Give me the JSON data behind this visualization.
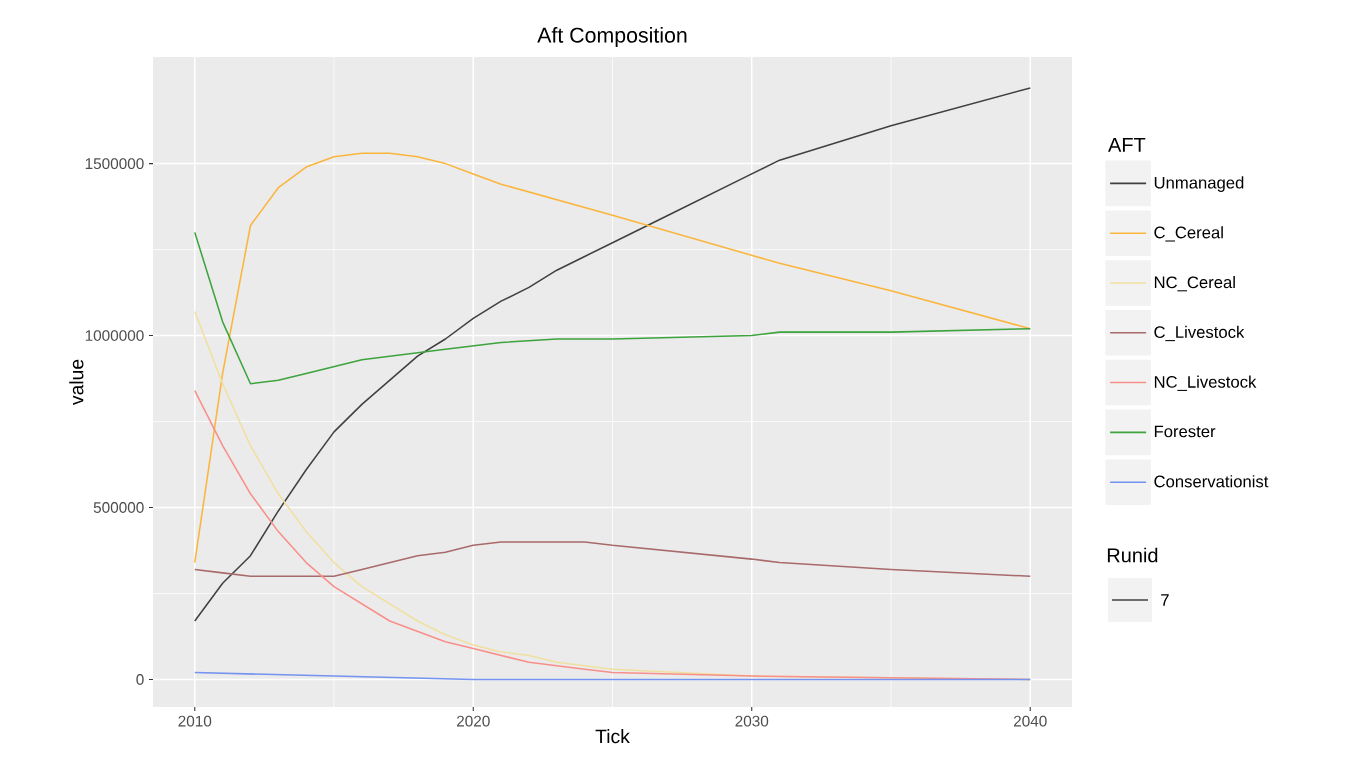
{
  "chart_data": {
    "type": "line",
    "title": "Aft Composition",
    "xlabel": "Tick",
    "ylabel": "value",
    "legend_title": "AFT",
    "annotations": [
      "Runid",
      "7"
    ],
    "xlim": [
      2008.5,
      2041.5
    ],
    "ylim": [
      -80000,
      1810000
    ],
    "xticks": [
      2010,
      2020,
      2030,
      2040
    ],
    "yticks": [
      0,
      500000,
      1000000,
      1500000
    ],
    "grid": true,
    "legend": "right",
    "line_style": "solid",
    "marker": "none",
    "series": [
      {
        "name": "Unmanaged",
        "color": "#404040",
        "x": [
          2010,
          2011,
          2012,
          2013,
          2014,
          2015,
          2016,
          2017,
          2018,
          2019,
          2020,
          2021,
          2022,
          2023,
          2024,
          2025,
          2027,
          2030,
          2031,
          2035,
          2040
        ],
        "values": [
          170000,
          280000,
          360000,
          490000,
          610000,
          720000,
          800000,
          870000,
          940000,
          990000,
          1050000,
          1100000,
          1140000,
          1190000,
          1230000,
          1270000,
          1350000,
          1470000,
          1510000,
          1610000,
          1720000
        ]
      },
      {
        "name": "C_Cereal",
        "color": "#fbb53c",
        "x": [
          2010,
          2011,
          2012,
          2013,
          2014,
          2015,
          2016,
          2017,
          2018,
          2019,
          2020,
          2021,
          2025,
          2031,
          2035,
          2040
        ],
        "values": [
          340000,
          890000,
          1320000,
          1430000,
          1490000,
          1520000,
          1530000,
          1530000,
          1520000,
          1500000,
          1470000,
          1440000,
          1350000,
          1210000,
          1130000,
          1020000
        ]
      },
      {
        "name": "NC_Cereal",
        "color": "#f0e0a0",
        "x": [
          2010,
          2011,
          2012,
          2013,
          2014,
          2015,
          2016,
          2017,
          2018,
          2019,
          2020,
          2021,
          2022,
          2023,
          2024,
          2025,
          2030,
          2040
        ],
        "values": [
          1070000,
          860000,
          680000,
          540000,
          430000,
          340000,
          270000,
          220000,
          170000,
          130000,
          100000,
          80000,
          70000,
          50000,
          40000,
          30000,
          10000,
          0
        ]
      },
      {
        "name": "C_Livestock",
        "color": "#a86a6a",
        "x": [
          2010,
          2011,
          2012,
          2013,
          2014,
          2015,
          2016,
          2017,
          2018,
          2019,
          2020,
          2021,
          2022,
          2023,
          2024,
          2025,
          2030,
          2031,
          2035,
          2040
        ],
        "values": [
          320000,
          310000,
          300000,
          300000,
          300000,
          300000,
          320000,
          340000,
          360000,
          370000,
          390000,
          400000,
          400000,
          400000,
          400000,
          390000,
          350000,
          340000,
          320000,
          300000
        ]
      },
      {
        "name": "NC_Livestock",
        "color": "#f88f8a",
        "x": [
          2010,
          2011,
          2012,
          2013,
          2014,
          2015,
          2016,
          2017,
          2018,
          2019,
          2020,
          2021,
          2022,
          2023,
          2024,
          2025,
          2030,
          2040
        ],
        "values": [
          840000,
          680000,
          540000,
          430000,
          340000,
          270000,
          220000,
          170000,
          140000,
          110000,
          90000,
          70000,
          50000,
          40000,
          30000,
          20000,
          10000,
          0
        ]
      },
      {
        "name": "Forester",
        "color": "#3da33d",
        "x": [
          2010,
          2011,
          2012,
          2013,
          2014,
          2015,
          2016,
          2017,
          2018,
          2019,
          2020,
          2021,
          2023,
          2025,
          2030,
          2031,
          2035,
          2040
        ],
        "values": [
          1300000,
          1040000,
          860000,
          870000,
          890000,
          910000,
          930000,
          940000,
          950000,
          960000,
          970000,
          980000,
          990000,
          990000,
          1000000,
          1010000,
          1010000,
          1020000
        ]
      },
      {
        "name": "Conservationist",
        "color": "#7593f0",
        "x": [
          2010,
          2015,
          2020,
          2030,
          2040
        ],
        "values": [
          20000,
          10000,
          0,
          0,
          0
        ]
      }
    ]
  }
}
